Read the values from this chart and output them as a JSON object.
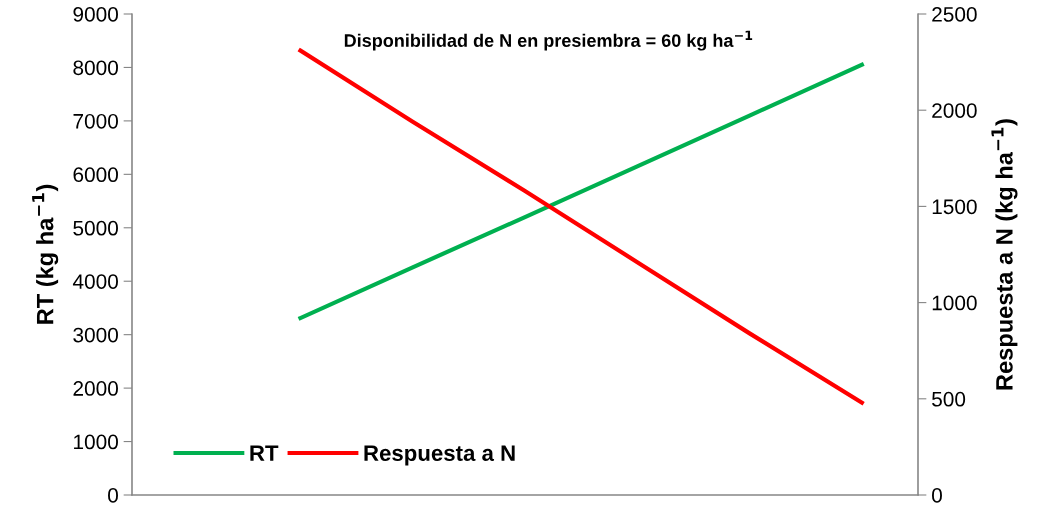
{
  "chart_data": {
    "type": "line",
    "title": "Disponibilidad de N en presiembra = 60 kg ha$^{−1}$",
    "ylabel": "RT (kg ha$^{−1}$)",
    "y2label": "Respuesta a N (kg ha$^{−1}$)",
    "categories": [
      null,
      null,
      null,
      null,
      null,
      null,
      null
    ],
    "series": [
      {
        "name": "RT",
        "color": "#00b050",
        "values": [
          null,
          3310,
          4260,
          5200,
          6150,
          7100,
          8050
        ]
      },
      {
        "name": "Respuesta a N",
        "color": "#ff0000",
        "axis": "y2",
        "values": [
          null,
          2310,
          1940,
          1580,
          1210,
          840,
          480
        ]
      }
    ],
    "ylim": [
      0,
      9000
    ],
    "yticks": [
      0,
      1000,
      2000,
      3000,
      4000,
      5000,
      6000,
      7000,
      8000,
      9000
    ],
    "y2lim": [
      0,
      2500
    ],
    "y2ticks": [
      0,
      500,
      1000,
      1500,
      2000,
      2500
    ],
    "grid": false,
    "legend": "bottom left",
    "marker": "none",
    "line_style": "solid"
  }
}
